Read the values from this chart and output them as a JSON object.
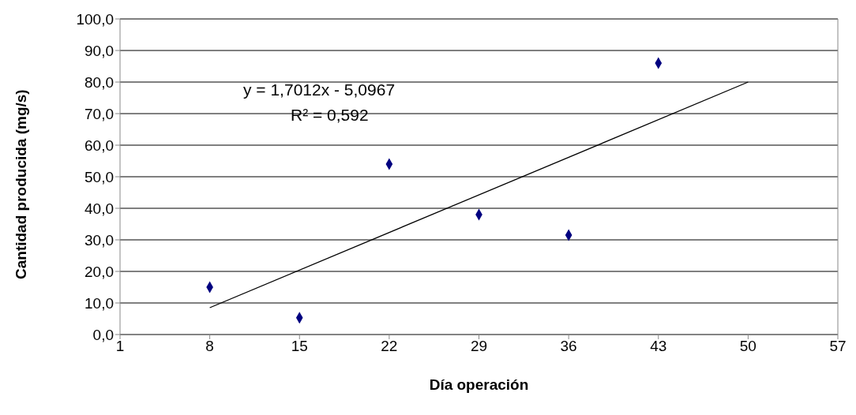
{
  "chart_data": {
    "type": "scatter",
    "xlabel": "Día operación",
    "ylabel": "Cantidad producida (mg/s)",
    "x": [
      8,
      15,
      22,
      29,
      36,
      43
    ],
    "series": [
      {
        "color": "#000080",
        "marker": "diamond",
        "values": [
          15,
          5.3,
          54,
          38,
          31.5,
          86
        ]
      },
      {
        "type": "line",
        "color": "#000000",
        "x": [
          8,
          50
        ],
        "values": [
          8.5,
          80
        ]
      }
    ],
    "xlim": [
      1,
      57
    ],
    "xticks": [
      1,
      8,
      15,
      22,
      29,
      36,
      43,
      50,
      57
    ],
    "ylim": [
      0,
      100
    ],
    "yticks": [
      {
        "value": 0,
        "label": "0,0"
      },
      {
        "value": 10,
        "label": "10,0"
      },
      {
        "value": 20,
        "label": "20,0"
      },
      {
        "value": 30,
        "label": "30,0"
      },
      {
        "value": 40,
        "label": "40,0"
      },
      {
        "value": 50,
        "label": "50,0"
      },
      {
        "value": 60,
        "label": "60,0"
      },
      {
        "value": 70,
        "label": "70,0"
      },
      {
        "value": 80,
        "label": "80,0"
      },
      {
        "value": 90,
        "label": "90,0"
      },
      {
        "value": 100,
        "label": "100,0"
      }
    ],
    "grid": "y",
    "line_style": "solid",
    "annotations": [
      "y = 1,7012x - 5,0967",
      "R² = 0,592"
    ]
  }
}
